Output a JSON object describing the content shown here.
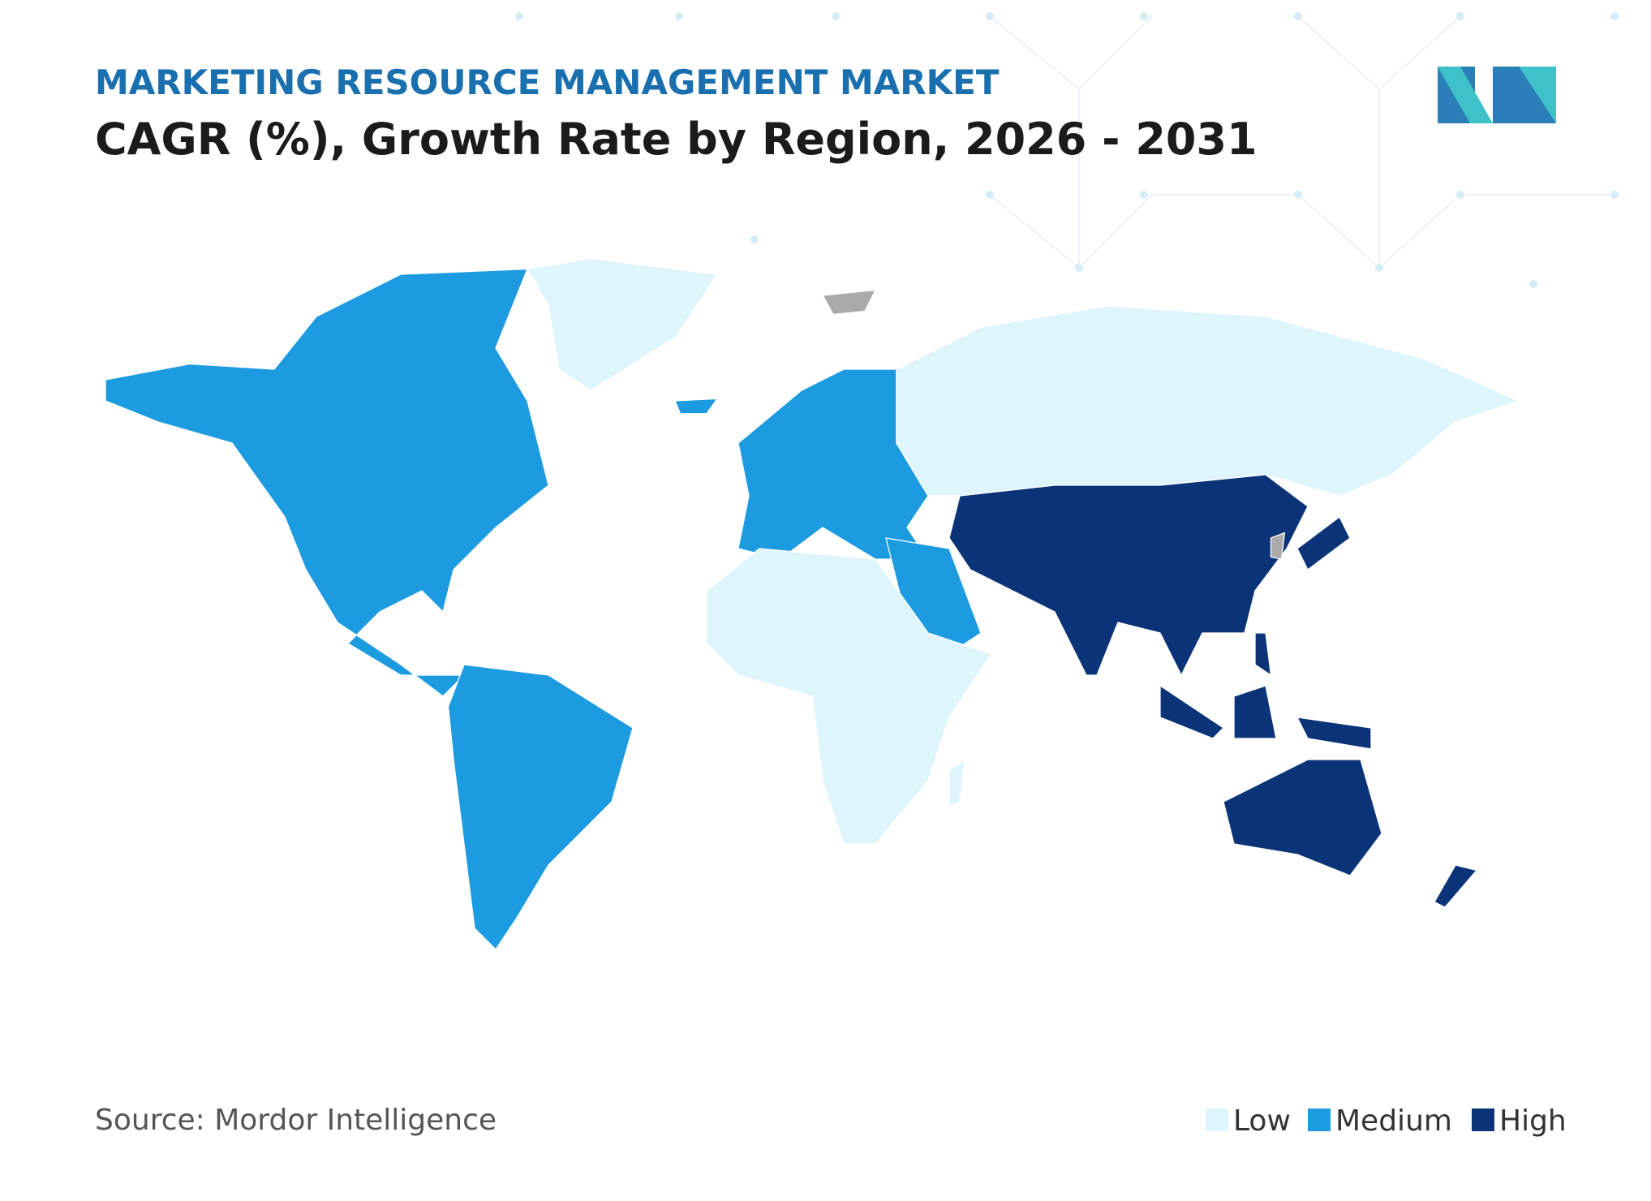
{
  "header": {
    "title": "MARKETING RESOURCE MANAGEMENT MARKET",
    "subtitle": "CAGR (%), Growth Rate by Region, 2026 - 2031"
  },
  "legend": [
    {
      "label": "Low",
      "color": "#dff5fc"
    },
    {
      "label": "Medium",
      "color": "#1c9be0"
    },
    {
      "label": "High",
      "color": "#0b3478"
    }
  ],
  "source": "Source: Mordor Intelligence"
}
